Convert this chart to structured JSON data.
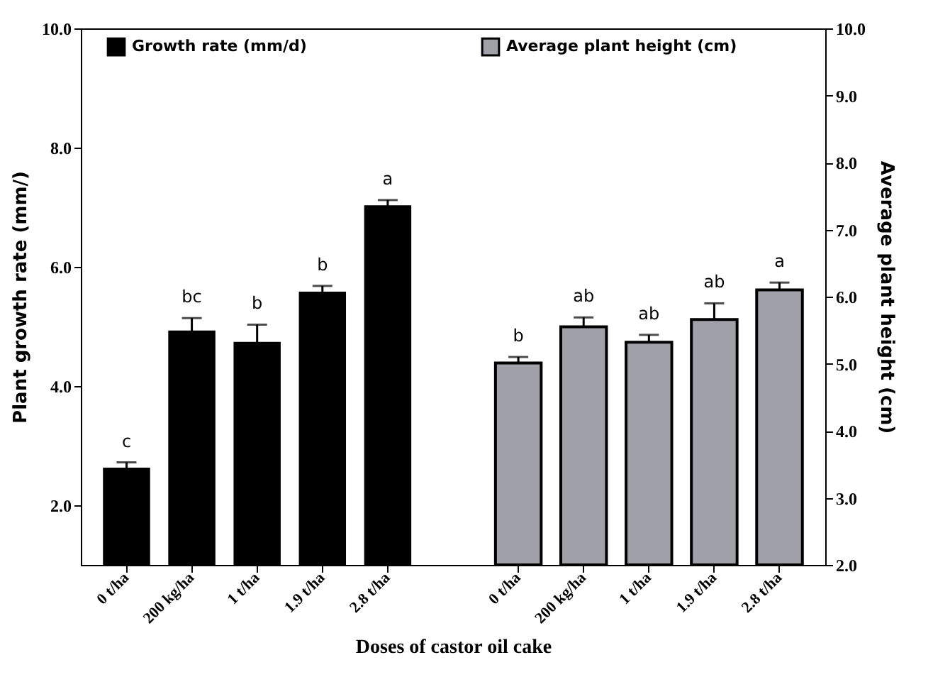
{
  "chart_data": {
    "type": "bar",
    "xlabel": "Doses of castor oil cake",
    "ylabel": "Plant growth rate (mm/)",
    "y2label": "Average plant height (cm)",
    "categories": [
      "0 t/ha",
      "200 kg/ha",
      "1 t/ha",
      "1.9 t/ha",
      "2.8 t/ha",
      "0 t/ha",
      "200 kg/ha",
      "1 t/ha",
      "1.9 t/ha",
      "2.8 t/ha"
    ],
    "series": [
      {
        "name": "Growth rate (mm/d)",
        "color": "#000000",
        "values": [
          2.62,
          4.92,
          4.73,
          5.57,
          7.02,
          null,
          null,
          null,
          null,
          null
        ],
        "errors": [
          0.1,
          0.22,
          0.3,
          0.11,
          0.1,
          null,
          null,
          null,
          null,
          null
        ],
        "value_labels": [
          "c",
          "bc",
          "b",
          "b",
          "a",
          null,
          null,
          null,
          null,
          null
        ]
      },
      {
        "name": "Average plant height (cm)",
        "color": "#a0a0a8",
        "axis": "y2",
        "values": [
          null,
          null,
          null,
          null,
          null,
          5.01,
          5.55,
          5.32,
          5.66,
          6.1
        ],
        "errors": [
          null,
          null,
          null,
          null,
          null,
          0.09,
          0.14,
          0.11,
          0.24,
          0.11
        ],
        "value_labels": [
          null,
          null,
          null,
          null,
          null,
          "b",
          "ab",
          "ab",
          "ab",
          "a"
        ]
      }
    ],
    "ylim": [
      1,
      10
    ],
    "yticks": [
      {
        "value": 2,
        "label": "2.0"
      },
      {
        "value": 4,
        "label": "4.0"
      },
      {
        "value": 6,
        "label": "6.0"
      },
      {
        "value": 8,
        "label": "8.0"
      },
      {
        "value": 10,
        "label": "10.0"
      }
    ],
    "y2lim": [
      2,
      10
    ],
    "y2ticks": [
      {
        "value": 2,
        "label": "2.0"
      },
      {
        "value": 3,
        "label": "3.0"
      },
      {
        "value": 4,
        "label": "4.0"
      },
      {
        "value": 5,
        "label": "5.0"
      },
      {
        "value": 6,
        "label": "6.0"
      },
      {
        "value": 7,
        "label": "7.0"
      },
      {
        "value": 8,
        "label": "8.0"
      },
      {
        "value": 9,
        "label": "9.0"
      },
      {
        "value": 10,
        "label": "10.0"
      }
    ],
    "grid": false,
    "legend": "top"
  }
}
